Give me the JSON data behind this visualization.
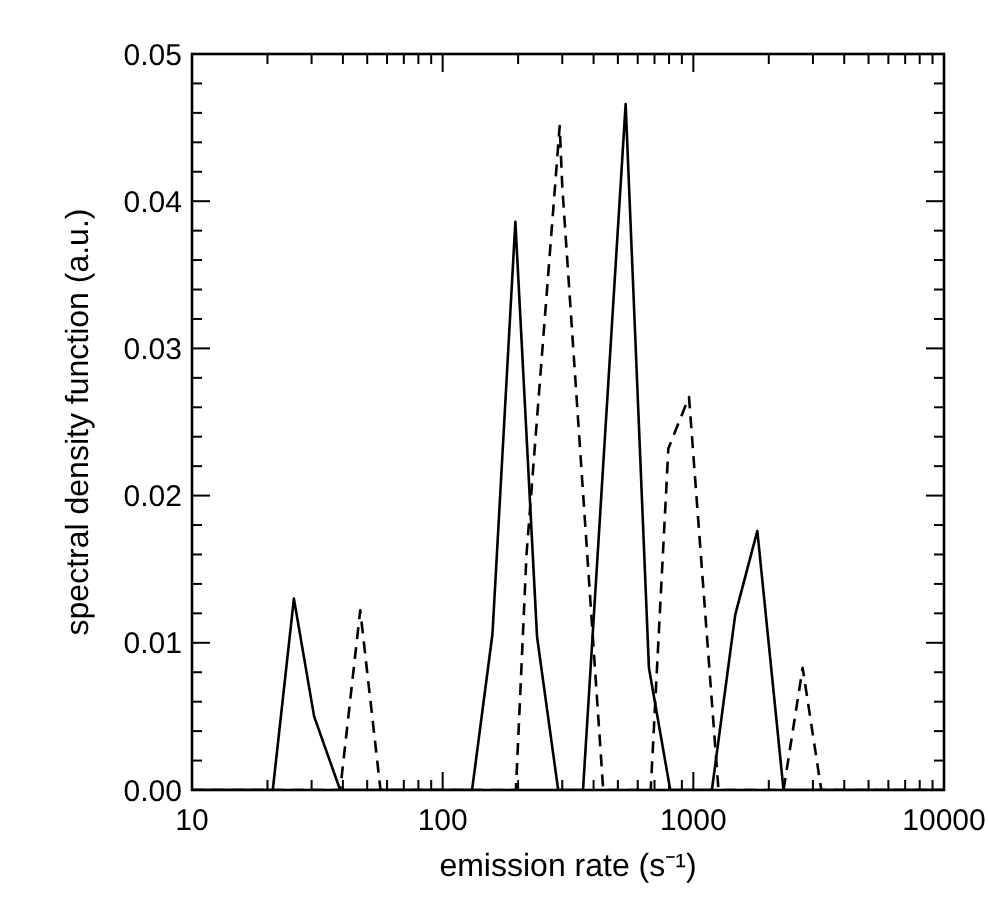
{
  "chart_data": {
    "type": "line",
    "xlabel": "emission rate (s⁻¹)",
    "ylabel": "spectral density function (a.u.)",
    "log": "x",
    "grid": false,
    "marker": "none",
    "xlim": [
      10,
      10000
    ],
    "ylim": [
      0,
      0.05
    ],
    "xticks": [
      10,
      {
        "value": 20,
        "label": null
      },
      {
        "value": 30,
        "label": null
      },
      {
        "value": 40,
        "label": null
      },
      {
        "value": 50,
        "label": null
      },
      {
        "value": 60,
        "label": null
      },
      {
        "value": 70,
        "label": null
      },
      {
        "value": 80,
        "label": null
      },
      {
        "value": 90,
        "label": null
      },
      100,
      {
        "value": 200,
        "label": null
      },
      {
        "value": 300,
        "label": null
      },
      {
        "value": 400,
        "label": null
      },
      {
        "value": 500,
        "label": null
      },
      {
        "value": 600,
        "label": null
      },
      {
        "value": 700,
        "label": null
      },
      {
        "value": 800,
        "label": null
      },
      {
        "value": 900,
        "label": null
      },
      1000,
      {
        "value": 2000,
        "label": null
      },
      {
        "value": 3000,
        "label": null
      },
      {
        "value": 4000,
        "label": null
      },
      {
        "value": 5000,
        "label": null
      },
      {
        "value": 6000,
        "label": null
      },
      {
        "value": 7000,
        "label": null
      },
      {
        "value": 8000,
        "label": null
      },
      {
        "value": 9000,
        "label": null
      },
      10000
    ],
    "yticks": [
      {
        "value": 0,
        "label": "0.00"
      },
      {
        "value": 0.002,
        "label": null
      },
      {
        "value": 0.004,
        "label": null
      },
      {
        "value": 0.006,
        "label": null
      },
      {
        "value": 0.008,
        "label": null
      },
      {
        "value": 0.01,
        "label": "0.01"
      },
      {
        "value": 0.012,
        "label": null
      },
      {
        "value": 0.014,
        "label": null
      },
      {
        "value": 0.016,
        "label": null
      },
      {
        "value": 0.018,
        "label": null
      },
      {
        "value": 0.02,
        "label": "0.02"
      },
      {
        "value": 0.022,
        "label": null
      },
      {
        "value": 0.024,
        "label": null
      },
      {
        "value": 0.026,
        "label": null
      },
      {
        "value": 0.028,
        "label": null
      },
      {
        "value": 0.03,
        "label": "0.03"
      },
      {
        "value": 0.032,
        "label": null
      },
      {
        "value": 0.034,
        "label": null
      },
      {
        "value": 0.036,
        "label": null
      },
      {
        "value": 0.038,
        "label": null
      },
      {
        "value": 0.04,
        "label": "0.04"
      },
      {
        "value": 0.042,
        "label": null
      },
      {
        "value": 0.044,
        "label": null
      },
      {
        "value": 0.046,
        "label": null
      },
      {
        "value": 0.048,
        "label": null
      },
      {
        "value": 0.05,
        "label": "0.05"
      }
    ],
    "series": [
      {
        "color": "#000000",
        "line_style": "solid",
        "x": [
          10,
          21,
          25.5,
          30.7,
          39,
          131,
          158,
          195,
          238,
          289,
          363,
          537,
          665,
          809,
          1186,
          1469,
          1800,
          2290,
          10000
        ],
        "values": [
          0,
          0,
          0.013,
          0.005,
          0,
          0,
          0.0106,
          0.0386,
          0.0104,
          0,
          0,
          0.0466,
          0.0083,
          0,
          0,
          0.0119,
          0.0176,
          0,
          0
        ]
      },
      {
        "color": "#000000",
        "line_style": "dashed",
        "x": [
          10,
          39,
          46.9,
          56.5,
          196,
          216,
          293,
          300,
          437,
          676,
          795,
          961,
          1260,
          2290,
          2730,
          3240,
          10000
        ],
        "values": [
          0,
          0,
          0.0122,
          0,
          0,
          0.016,
          0.0451,
          0.041,
          0,
          0,
          0.0232,
          0.0267,
          0,
          0,
          0.0083,
          0,
          0
        ]
      }
    ]
  }
}
